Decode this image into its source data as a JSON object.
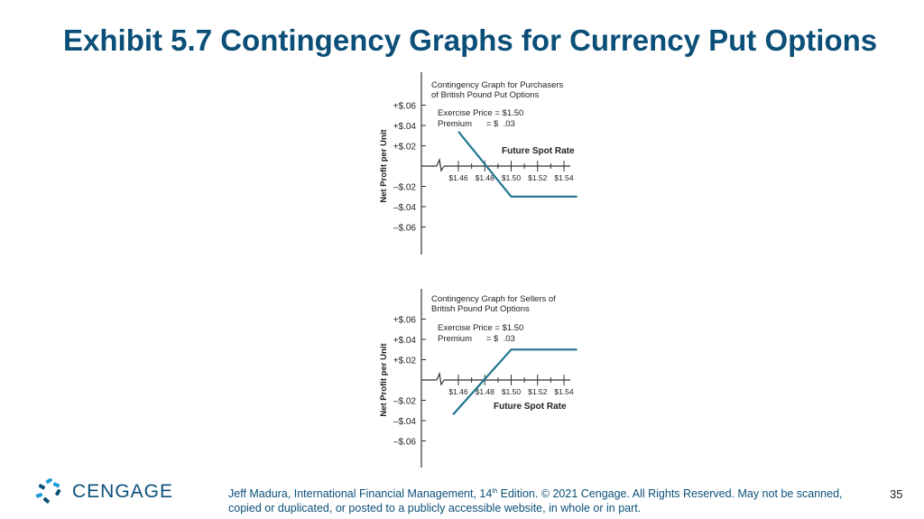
{
  "slide": {
    "title": "Exhibit 5.7 Contingency Graphs for Currency Put Options",
    "page_number": "35"
  },
  "footer": {
    "logo_text": "CENGAGE",
    "citation_part1": "Jeff Madura, International Financial Management, 14",
    "citation_sup": "th",
    "citation_part2": " Edition. © 2021 Cengage. All Rights Reserved. May not be scanned, copied or duplicated, or posted to a publicly accessible website, in whole or in part."
  },
  "colors": {
    "title": "#0b4f78",
    "payoff_line": "#1f7590",
    "axis": "#333333"
  },
  "icons": {
    "logo": "cengage-logo-icon"
  },
  "chart_data": [
    {
      "type": "line",
      "title_lines": [
        "Contingency Graph for Purchasers",
        "of British Pound Put Options"
      ],
      "exercise_label": "Exercise Price = $1.50",
      "premium_label": "Premium      = $  .03",
      "xlabel": "Future Spot Rate",
      "ylabel": "Net Profit per Unit",
      "x_ticks": [
        1.46,
        1.48,
        1.5,
        1.52,
        1.54
      ],
      "x_tick_labels": [
        "$1.46",
        "$1.48",
        "$1.50",
        "$1.52",
        "$1.54"
      ],
      "y_ticks": [
        0.06,
        0.04,
        0.02,
        -0.02,
        -0.04,
        -0.06
      ],
      "y_tick_labels": [
        "+$.06",
        "+$.04",
        "+$.02",
        "–$.02",
        "–$.04",
        "–$.06"
      ],
      "ylim": [
        -0.085,
        0.085
      ],
      "xlabel_position": "above-axis",
      "series": [
        {
          "x": [
            1.46,
            1.5,
            1.55
          ],
          "y": [
            0.034,
            -0.03,
            -0.03
          ]
        }
      ]
    },
    {
      "type": "line",
      "title_lines": [
        "Contingency Graph for Sellers of",
        "British Pound Put Options"
      ],
      "exercise_label": "Exercise Price = $1.50",
      "premium_label": "Premium      = $  .03",
      "xlabel": "Future Spot Rate",
      "ylabel": "Net Profit per Unit",
      "x_ticks": [
        1.46,
        1.48,
        1.5,
        1.52,
        1.54
      ],
      "x_tick_labels": [
        "$1.46",
        "$1.48",
        "$1.50",
        "$1.52",
        "$1.54"
      ],
      "y_ticks": [
        0.06,
        0.04,
        0.02,
        -0.02,
        -0.04,
        -0.06
      ],
      "y_tick_labels": [
        "+$.06",
        "+$.04",
        "+$.02",
        "–$.02",
        "–$.04",
        "–$.06"
      ],
      "ylim": [
        -0.085,
        0.085
      ],
      "xlabel_position": "below-axis",
      "series": [
        {
          "x": [
            1.456,
            1.5,
            1.55
          ],
          "y": [
            -0.034,
            0.03,
            0.03
          ]
        }
      ]
    }
  ]
}
